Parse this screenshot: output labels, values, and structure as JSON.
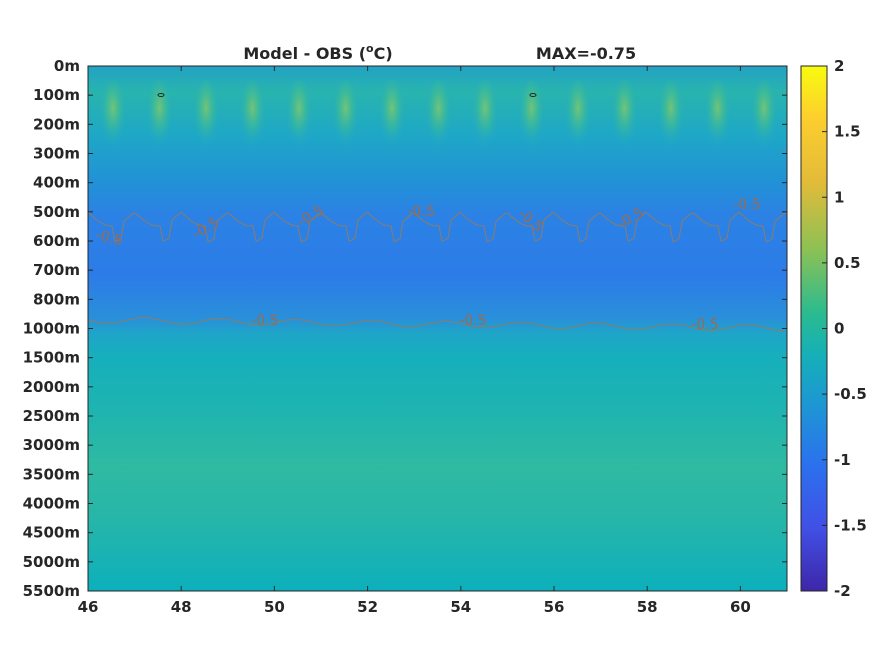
{
  "chart_data": {
    "type": "heatmap",
    "title": "Model - OBS (°C)",
    "title_parts": {
      "prefix": "Model - OBS (",
      "sup": "o",
      "suffix": "C)"
    },
    "max_label": "MAX=-0.75",
    "x_ticks": [
      "46",
      "48",
      "50",
      "52",
      "54",
      "56",
      "58",
      "60"
    ],
    "x_tick_values": [
      46,
      48,
      50,
      52,
      54,
      56,
      58,
      60
    ],
    "xlim": [
      46,
      61
    ],
    "y_ticks": [
      "0m",
      "100m",
      "200m",
      "300m",
      "400m",
      "500m",
      "600m",
      "700m",
      "800m",
      "1000m",
      "1500m",
      "2000m",
      "2500m",
      "3000m",
      "3500m",
      "4000m",
      "4500m",
      "5000m",
      "5500m"
    ],
    "colorbar": {
      "ticks": [
        "2",
        "1.5",
        "1",
        "0.5",
        "0",
        "-0.5",
        "-1",
        "-1.5",
        "-2"
      ],
      "range": [
        -2,
        2
      ],
      "colormap": "parula"
    },
    "contour_level": "-0.5",
    "contour_labels": [
      "-0.5",
      "-0.5",
      "-0.5",
      "-0.5",
      "-0.5",
      "-0.5",
      "-0.5",
      "-0.5",
      "-0.5",
      "-0.5",
      "-0.5"
    ],
    "colors": {
      "contour": "#8a7c6c",
      "contour_label": "#a06a4a"
    }
  }
}
